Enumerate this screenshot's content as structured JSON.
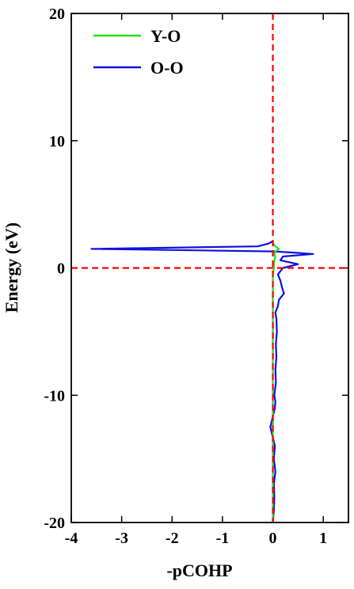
{
  "chart_data": {
    "type": "line",
    "orientation": "vertical",
    "xlabel": "-pCOHP",
    "ylabel": "Energy (eV)",
    "xlim": [
      -4,
      1.5
    ],
    "ylim": [
      -20,
      20
    ],
    "xticks": [
      -4,
      -3,
      -2,
      -1,
      0,
      1
    ],
    "yticks": [
      -20,
      -10,
      0,
      10,
      20
    ],
    "hline": 0,
    "vline": 0,
    "ref_color": "#ff0000",
    "legend": "upper left",
    "y": [
      -20,
      -19,
      -18,
      -17,
      -16,
      -15,
      -14,
      -13,
      -12.5,
      -12,
      -11,
      -10.5,
      -10,
      -9,
      -8,
      -7,
      -6,
      -5,
      -4,
      -3.5,
      -3,
      -2.5,
      -2,
      -1.5,
      -1,
      -0.5,
      0,
      0.3,
      0.6,
      0.9,
      1.1,
      1.3,
      1.5,
      1.7,
      1.9,
      2.1
    ],
    "series": [
      {
        "name": "Y-O",
        "color": "#22e01a",
        "values": [
          0,
          0,
          0,
          0,
          0,
          0,
          0,
          0,
          0,
          0,
          0,
          0,
          0,
          0,
          0,
          0,
          0,
          0,
          0,
          0,
          0,
          0,
          0,
          0,
          0,
          0,
          0.02,
          0.02,
          0.03,
          0.05,
          0.03,
          0.05,
          0.12,
          0.05,
          0.01,
          0
        ]
      },
      {
        "name": "O-O",
        "color": "#1010e0",
        "values": [
          0,
          0.02,
          0.03,
          0.02,
          0.05,
          0.02,
          0.04,
          -0.02,
          -0.05,
          -0.02,
          0.04,
          0.05,
          0.03,
          0.06,
          0.05,
          0.07,
          0.06,
          0.08,
          0.07,
          0.05,
          0.1,
          0.12,
          0.22,
          0.18,
          0.15,
          0.1,
          0.2,
          0.5,
          0.15,
          0.2,
          0.8,
          0.05,
          -3.6,
          -0.3,
          -0.1,
          0
        ]
      }
    ]
  }
}
